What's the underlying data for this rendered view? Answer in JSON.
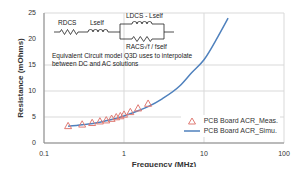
{
  "chart_data": {
    "type": "line",
    "x_label": "Frequency (MHz)",
    "y_label": "Resistance (mOhms)",
    "log": "x",
    "grid": true,
    "legend": "lower right",
    "xlim": [
      0.1,
      100
    ],
    "xticks": [
      0.1,
      1,
      10,
      100
    ],
    "ylim": [
      0,
      25
    ],
    "yticks": [
      0,
      5,
      10,
      15,
      20,
      25
    ],
    "annotations": {
      "circuit_labels": [
        "RDCS",
        "Lself",
        "LDCS - Lself",
        "RACS√f / fself"
      ],
      "caption": [
        "Equivalent Circuit model  Q3D uses to interpolate",
        "between DC and AC solutions"
      ]
    },
    "series": [
      {
        "name": "PCB Board ACR_Meas.",
        "type": "scatter",
        "marker": "triangle",
        "color": "#e07b74",
        "x": [
          0.2,
          0.3,
          0.4,
          0.5,
          0.6,
          0.7,
          0.8,
          0.9,
          1.0,
          1.2,
          1.5,
          2.0
        ],
        "values": [
          3.3,
          3.6,
          3.9,
          4.2,
          4.4,
          4.7,
          5.0,
          5.2,
          5.5,
          6.0,
          6.7,
          7.6
        ]
      },
      {
        "name": "PCB Board ACR_Simu.",
        "type": "line",
        "line_style": "solid",
        "color": "#4f81bd",
        "x": [
          0.2,
          0.3,
          0.5,
          0.7,
          1,
          1.5,
          2,
          3,
          5,
          7,
          10,
          15,
          20
        ],
        "values": [
          3.2,
          3.5,
          4.0,
          4.5,
          5.2,
          6.2,
          7.0,
          8.5,
          11.0,
          13.5,
          16.0,
          20.5,
          24.0
        ]
      }
    ]
  }
}
